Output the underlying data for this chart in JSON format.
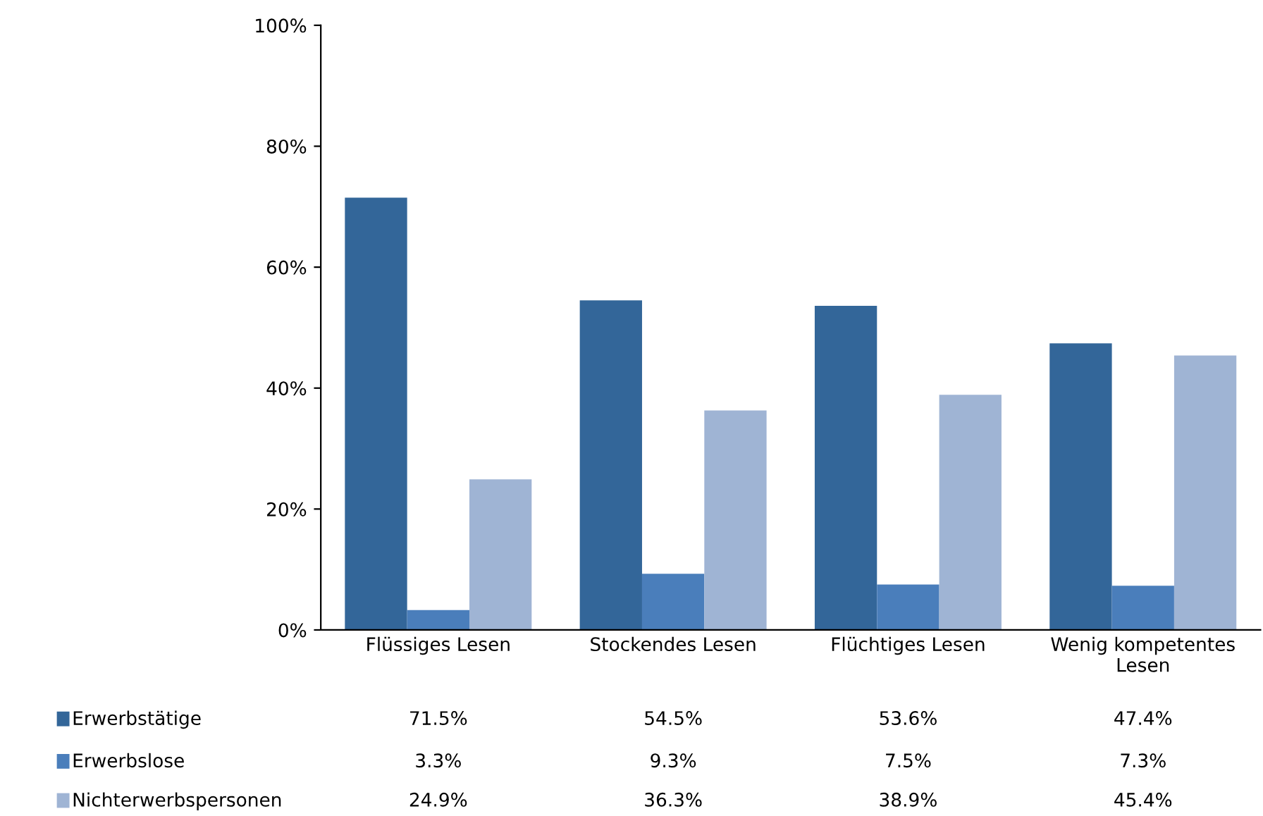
{
  "chart_data": {
    "type": "bar",
    "categories": [
      "Flüssiges Lesen",
      "Stockendes Lesen",
      "Flüchtiges Lesen",
      "Wenig kompetentes Lesen"
    ],
    "series": [
      {
        "name": "Erwerbstätige",
        "color": "#336699",
        "values": [
          71.5,
          54.5,
          53.6,
          47.4
        ],
        "value_labels": [
          "71.5%",
          "54.5%",
          "53.6%",
          "47.4%"
        ]
      },
      {
        "name": "Erwerbslose",
        "color": "#4a7ebb",
        "values": [
          3.3,
          9.3,
          7.5,
          7.3
        ],
        "value_labels": [
          "3.3%",
          "9.3%",
          "7.5%",
          "7.3%"
        ]
      },
      {
        "name": "Nichterwerbspersonen",
        "color": "#9fb4d4",
        "values": [
          24.9,
          36.3,
          38.9,
          45.4
        ],
        "value_labels": [
          "24.9%",
          "36.3%",
          "38.9%",
          "45.4%"
        ]
      }
    ],
    "ylim": [
      0,
      100
    ],
    "yticks": [
      {
        "value": 0,
        "label": "0%"
      },
      {
        "value": 20,
        "label": "20%"
      },
      {
        "value": 40,
        "label": "40%"
      },
      {
        "value": 60,
        "label": "60%"
      },
      {
        "value": 80,
        "label": "80%"
      },
      {
        "value": 100,
        "label": "100%"
      }
    ],
    "grid": false,
    "legend": "bottom left"
  }
}
